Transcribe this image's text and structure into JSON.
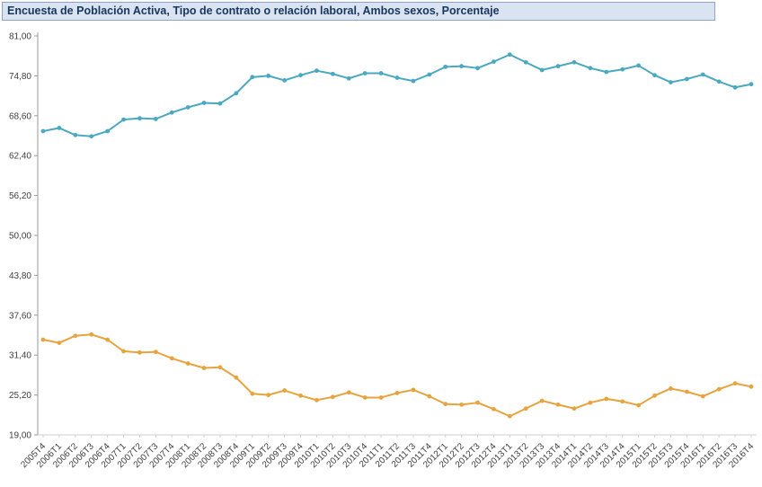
{
  "title": "Encuesta de Población Activa, Tipo de contrato o relación laboral, Ambos sexos, Porcentaje",
  "colors": {
    "title_bg": "#d9e3f1",
    "title_text": "#17375d",
    "title_border": "#8ea4c1",
    "axis": "#999999",
    "grid_axis_light": "#cfcfcf",
    "tick_text": "#3f3f3f",
    "series_teal": "#4aa9c0",
    "series_orange": "#e7a33e",
    "plot_bg": "#ffffff"
  },
  "chart_data": {
    "type": "line",
    "title": "Encuesta de Población Activa, Tipo de contrato o relación laboral, Ambos sexos, Porcentaje",
    "xlabel": "",
    "ylabel": "",
    "ylim": [
      19,
      81
    ],
    "y_ticks": [
      81,
      74.8,
      68.6,
      62.4,
      56.2,
      50,
      43.8,
      37.6,
      31.4,
      25.2,
      19
    ],
    "y_tick_labels": [
      "81,00",
      "74,80",
      "68,60",
      "62,40",
      "56,20",
      "50,00",
      "43,80",
      "37,60",
      "31,40",
      "25,20",
      "19,00"
    ],
    "grid": false,
    "legend_position": "none",
    "x_label_rotation": -45,
    "categories": [
      "2005T4",
      "2006T1",
      "2006T2",
      "2006T3",
      "2006T4",
      "2007T1",
      "2007T2",
      "2007T3",
      "2007T4",
      "2008T1",
      "2008T2",
      "2008T3",
      "2008T4",
      "2009T1",
      "2009T2",
      "2009T3",
      "2009T4",
      "2010T1",
      "2010T2",
      "2010T3",
      "2010T4",
      "2011T1",
      "2011T2",
      "2011T3",
      "2011T4",
      "2012T1",
      "2012T2",
      "2012T3",
      "2012T4",
      "2013T1",
      "2013T2",
      "2013T3",
      "2013T4",
      "2014T1",
      "2014T2",
      "2014T3",
      "2014T4",
      "2015T1",
      "2015T2",
      "2015T3",
      "2015T4",
      "2016T1",
      "2016T2",
      "2016T3",
      "2016T4"
    ],
    "series": [
      {
        "name": "serie-superior-teal",
        "color": "#4aa9c0",
        "values": [
          66.2,
          66.7,
          65.6,
          65.4,
          66.2,
          68.0,
          68.2,
          68.1,
          69.1,
          69.9,
          70.6,
          70.5,
          72.1,
          74.6,
          74.8,
          74.1,
          74.9,
          75.6,
          75.1,
          74.4,
          75.2,
          75.2,
          74.5,
          74.0,
          75.0,
          76.2,
          76.3,
          76.0,
          77.0,
          78.1,
          76.9,
          75.7,
          76.3,
          76.9,
          76.0,
          75.4,
          75.8,
          76.4,
          74.9,
          73.8,
          74.3,
          75.0,
          73.9,
          73.0,
          73.5
        ]
      },
      {
        "name": "serie-inferior-orange",
        "color": "#e7a33e",
        "values": [
          33.8,
          33.3,
          34.4,
          34.6,
          33.8,
          32.0,
          31.8,
          31.9,
          30.9,
          30.1,
          29.4,
          29.5,
          27.9,
          25.4,
          25.2,
          25.9,
          25.1,
          24.4,
          24.9,
          25.6,
          24.8,
          24.8,
          25.5,
          26.0,
          25.0,
          23.8,
          23.7,
          24.0,
          23.0,
          21.9,
          23.1,
          24.3,
          23.7,
          23.1,
          24.0,
          24.6,
          24.2,
          23.6,
          25.1,
          26.2,
          25.7,
          25.0,
          26.1,
          27.0,
          26.5
        ]
      }
    ]
  }
}
